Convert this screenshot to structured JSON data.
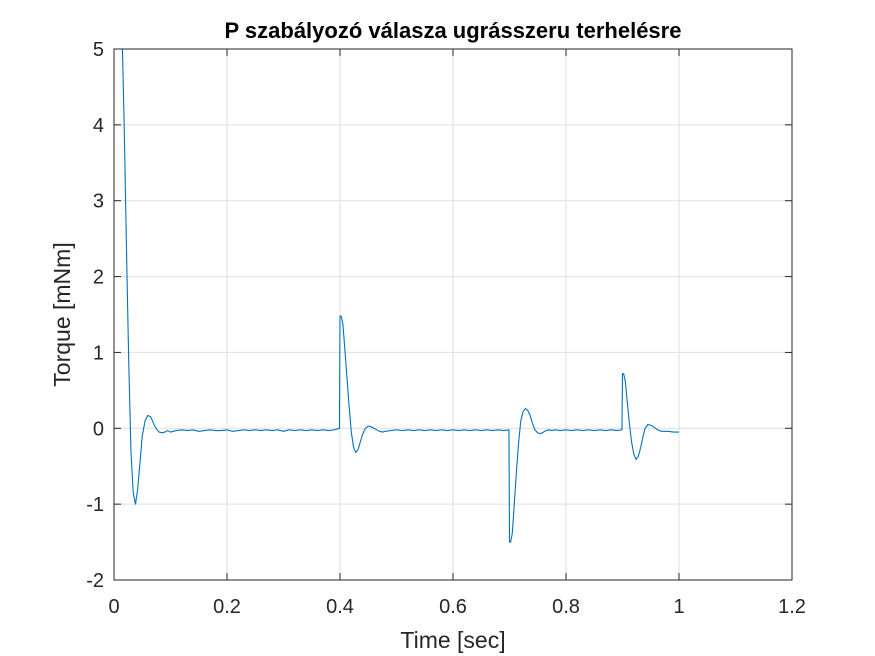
{
  "chart_data": {
    "type": "line",
    "title": "P szabályozó válasza ugrásszeru terhelésre",
    "xlabel": "Time [sec]",
    "ylabel": "Torque [mNm]",
    "xlim": [
      0,
      1.2
    ],
    "ylim": [
      -2,
      5
    ],
    "xticks": [
      0,
      0.2,
      0.4,
      0.6,
      0.8,
      1,
      1.2
    ],
    "xtick_labels": [
      "0",
      "0.2",
      "0.4",
      "0.6",
      "0.8",
      "1",
      "1.2"
    ],
    "yticks": [
      -2,
      -1,
      0,
      1,
      2,
      3,
      4,
      5
    ],
    "ytick_labels": [
      "-2",
      "-1",
      "0",
      "1",
      "2",
      "3",
      "4",
      "5"
    ],
    "grid": true,
    "line_color": "#0072BD",
    "series": [
      {
        "x": [
          0,
          0.015,
          0.018,
          0.022,
          0.026,
          0.03,
          0.034,
          0.038,
          0.042,
          0.046,
          0.05,
          0.055,
          0.06,
          0.065,
          0.068,
          0.072,
          0.076,
          0.08,
          0.085,
          0.09,
          0.095,
          0.1,
          0.105,
          0.11,
          0.12,
          0.13,
          0.14,
          0.15,
          0.16,
          0.17,
          0.18,
          0.19,
          0.2,
          0.21,
          0.22,
          0.23,
          0.24,
          0.25,
          0.26,
          0.27,
          0.28,
          0.29,
          0.3,
          0.31,
          0.32,
          0.33,
          0.34,
          0.35,
          0.36,
          0.37,
          0.38,
          0.39,
          0.399,
          0.4,
          0.402,
          0.405,
          0.408,
          0.412,
          0.416,
          0.42,
          0.424,
          0.428,
          0.432,
          0.436,
          0.44,
          0.445,
          0.45,
          0.455,
          0.46,
          0.465,
          0.47,
          0.475,
          0.48,
          0.49,
          0.5,
          0.51,
          0.52,
          0.53,
          0.54,
          0.55,
          0.56,
          0.57,
          0.58,
          0.59,
          0.6,
          0.61,
          0.62,
          0.63,
          0.64,
          0.65,
          0.66,
          0.67,
          0.68,
          0.69,
          0.699,
          0.7,
          0.702,
          0.705,
          0.708,
          0.712,
          0.716,
          0.72,
          0.724,
          0.728,
          0.732,
          0.736,
          0.74,
          0.745,
          0.75,
          0.755,
          0.76,
          0.765,
          0.77,
          0.775,
          0.78,
          0.79,
          0.8,
          0.81,
          0.82,
          0.83,
          0.84,
          0.85,
          0.86,
          0.87,
          0.88,
          0.89,
          0.899,
          0.9,
          0.902,
          0.905,
          0.908,
          0.912,
          0.916,
          0.92,
          0.924,
          0.928,
          0.932,
          0.936,
          0.94,
          0.945,
          0.95,
          0.955,
          0.96,
          0.965,
          0.97,
          0.98,
          0.99,
          1.0
        ],
        "y": [
          5,
          5,
          4.0,
          2.4,
          0.9,
          -0.3,
          -0.85,
          -1.0,
          -0.8,
          -0.45,
          -0.1,
          0.1,
          0.17,
          0.15,
          0.1,
          0.03,
          -0.02,
          -0.05,
          -0.06,
          -0.05,
          -0.03,
          -0.05,
          -0.04,
          -0.03,
          -0.02,
          -0.03,
          -0.02,
          -0.04,
          -0.03,
          -0.02,
          -0.03,
          -0.03,
          -0.02,
          -0.04,
          -0.03,
          -0.02,
          -0.03,
          -0.02,
          -0.03,
          -0.02,
          -0.03,
          -0.02,
          -0.04,
          -0.02,
          -0.03,
          -0.02,
          -0.03,
          -0.02,
          -0.03,
          -0.02,
          -0.03,
          -0.02,
          0.0,
          1.48,
          1.48,
          1.38,
          1.1,
          0.7,
          0.3,
          -0.05,
          -0.25,
          -0.32,
          -0.28,
          -0.18,
          -0.08,
          0.0,
          0.03,
          0.02,
          0.0,
          -0.02,
          -0.04,
          -0.05,
          -0.04,
          -0.03,
          -0.02,
          -0.03,
          -0.02,
          -0.03,
          -0.02,
          -0.03,
          -0.02,
          -0.03,
          -0.02,
          -0.03,
          -0.02,
          -0.03,
          -0.02,
          -0.03,
          -0.02,
          -0.03,
          -0.02,
          -0.03,
          -0.02,
          -0.03,
          -0.02,
          -1.5,
          -1.5,
          -1.38,
          -1.05,
          -0.6,
          -0.2,
          0.1,
          0.22,
          0.26,
          0.24,
          0.18,
          0.08,
          -0.02,
          -0.06,
          -0.07,
          -0.05,
          -0.03,
          -0.02,
          -0.03,
          -0.02,
          -0.03,
          -0.02,
          -0.03,
          -0.02,
          -0.03,
          -0.02,
          -0.03,
          -0.02,
          -0.03,
          -0.02,
          -0.03,
          -0.02,
          0.72,
          0.72,
          0.62,
          0.38,
          0.08,
          -0.18,
          -0.34,
          -0.41,
          -0.37,
          -0.26,
          -0.12,
          0.0,
          0.05,
          0.04,
          0.02,
          -0.01,
          -0.03,
          -0.04,
          -0.04,
          -0.05,
          -0.05
        ]
      }
    ]
  }
}
